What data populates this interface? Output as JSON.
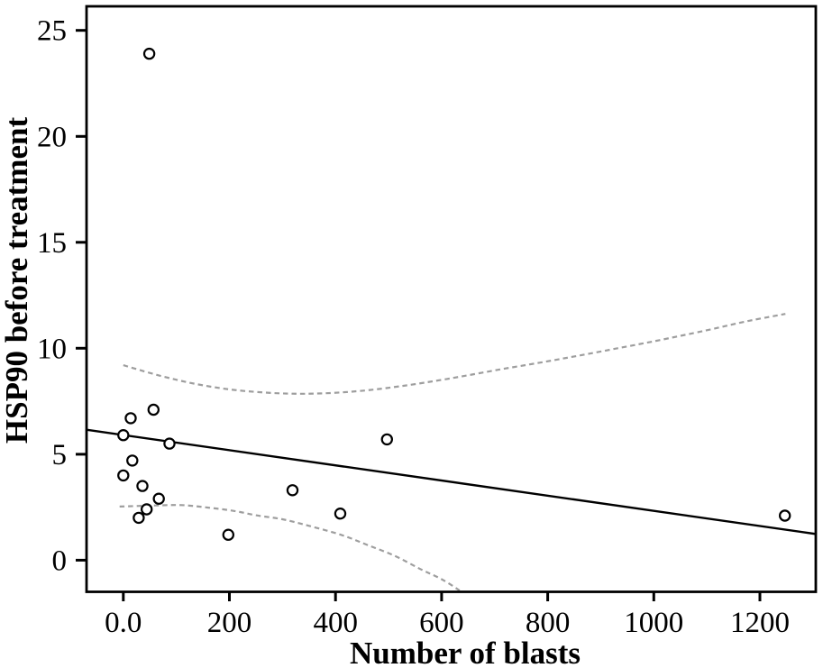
{
  "chart_data": {
    "type": "scatter",
    "title": "",
    "xlabel": "Number of blasts",
    "ylabel": "HSP90 before treatment",
    "xlim": [
      -71,
      1307
    ],
    "ylim": [
      -1.43,
      26.18
    ],
    "grid": false,
    "legend": null,
    "x_ticks": [
      {
        "value": 0,
        "label": "0.0"
      },
      {
        "value": 200,
        "label": "200"
      },
      {
        "value": 400,
        "label": "400"
      },
      {
        "value": 600,
        "label": "600"
      },
      {
        "value": 800,
        "label": "800"
      },
      {
        "value": 1000,
        "label": "1000"
      },
      {
        "value": 1200,
        "label": "1200"
      }
    ],
    "y_ticks": [
      {
        "value": 0,
        "label": "0"
      },
      {
        "value": 5,
        "label": "5"
      },
      {
        "value": 10,
        "label": "10"
      },
      {
        "value": 15,
        "label": "15"
      },
      {
        "value": 20,
        "label": "20"
      },
      {
        "value": 25,
        "label": "25"
      }
    ],
    "points": [
      [
        49,
        23.9
      ],
      [
        14,
        6.7
      ],
      [
        57,
        7.1
      ],
      [
        0,
        5.9
      ],
      [
        87,
        5.5
      ],
      [
        17,
        4.7
      ],
      [
        0,
        4.0
      ],
      [
        36,
        3.5
      ],
      [
        67,
        2.9
      ],
      [
        44,
        2.4
      ],
      [
        29,
        2.0
      ],
      [
        198,
        1.2
      ],
      [
        319,
        3.3
      ],
      [
        409,
        2.2
      ],
      [
        497,
        5.7
      ],
      [
        1247,
        2.1
      ]
    ],
    "regression_line": {
      "style": "solid",
      "color": "#000000",
      "width": 2.4,
      "endpoints": [
        [
          -71,
          6.16
        ],
        [
          1307,
          1.23
        ]
      ]
    },
    "ci_upper": {
      "style": "dashed",
      "color": "#9e9e9e",
      "width": 2.2,
      "points": [
        [
          0,
          9.2
        ],
        [
          70,
          8.7
        ],
        [
          140,
          8.3
        ],
        [
          210,
          8.03
        ],
        [
          290,
          7.88
        ],
        [
          360,
          7.86
        ],
        [
          440,
          7.97
        ],
        [
          520,
          8.2
        ],
        [
          610,
          8.55
        ],
        [
          710,
          9.0
        ],
        [
          810,
          9.43
        ],
        [
          900,
          9.85
        ],
        [
          1000,
          10.33
        ],
        [
          1100,
          10.85
        ],
        [
          1180,
          11.3
        ],
        [
          1248,
          11.62
        ]
      ]
    },
    "ci_lower": {
      "style": "dashed",
      "color": "#9e9e9e",
      "width": 2.2,
      "points": [
        [
          -7,
          2.53
        ],
        [
          60,
          2.58
        ],
        [
          110,
          2.6
        ],
        [
          160,
          2.48
        ],
        [
          210,
          2.32
        ],
        [
          250,
          2.12
        ],
        [
          300,
          1.93
        ],
        [
          350,
          1.62
        ],
        [
          410,
          1.2
        ],
        [
          460,
          0.72
        ],
        [
          512,
          0.2
        ],
        [
          560,
          -0.42
        ],
        [
          600,
          -0.9
        ],
        [
          634,
          -1.43
        ]
      ]
    },
    "marker": {
      "shape": "open-circle",
      "radius": 5.6,
      "stroke": "#000000",
      "stroke_width": 2.2,
      "fill": "#ffffff"
    },
    "axis_color": "#000000"
  }
}
